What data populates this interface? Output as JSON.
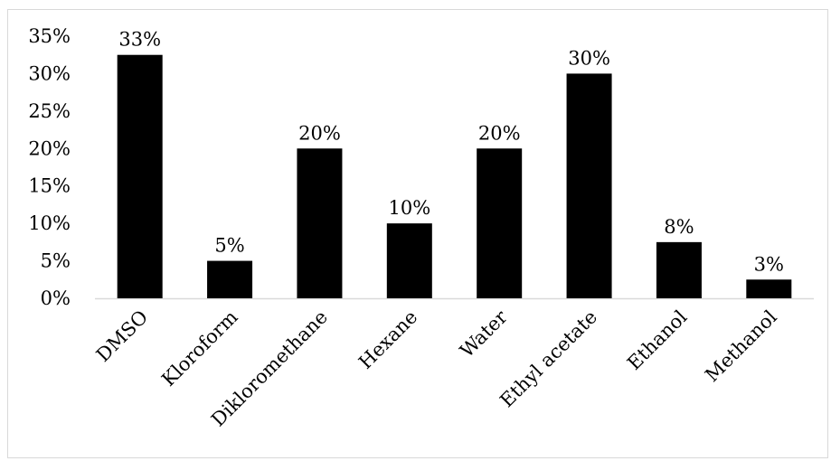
{
  "chart_data": {
    "type": "bar",
    "categories": [
      "DMSO",
      "Kloroform",
      "Dikloromethаne",
      "Hexane",
      "Water",
      "Ethyl acetate",
      "Ethanol",
      "Methanol"
    ],
    "values": [
      32.5,
      5,
      20,
      10,
      20,
      30,
      7.5,
      2.5
    ],
    "data_labels": [
      "33%",
      "5%",
      "20%",
      "10%",
      "20%",
      "30%",
      "8%",
      "3%"
    ],
    "y_ticks": [
      0,
      5,
      10,
      15,
      20,
      25,
      30,
      35
    ],
    "y_tick_labels": [
      "0%",
      "5%",
      "10%",
      "15%",
      "20%",
      "25%",
      "30%",
      "35%"
    ],
    "ylim": [
      0,
      35
    ],
    "title": "",
    "xlabel": "",
    "ylabel": "",
    "grid": false,
    "legend": "none",
    "bar_color": "#000000",
    "axis_color": "#d9d9d9"
  }
}
